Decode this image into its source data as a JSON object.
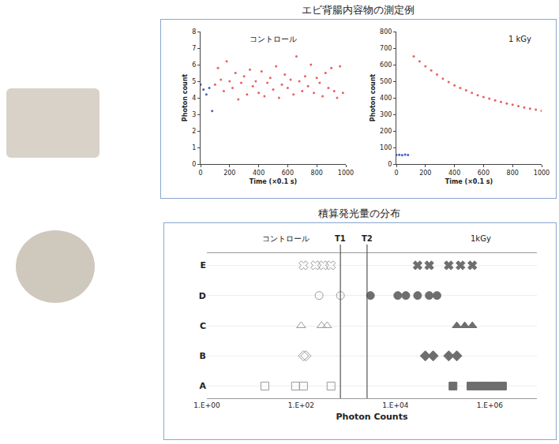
{
  "panel_title": "エビ背腸内容物の測定例",
  "chart_data": [
    {
      "type": "scatter",
      "title": "コントロール",
      "x_label": "Time (×0.1 s)",
      "y_label": "Photon count",
      "xlim": [
        0,
        1000
      ],
      "xticks": [
        0,
        200,
        400,
        600,
        800,
        1000
      ],
      "ylim": [
        0,
        8
      ],
      "yticks": [
        0,
        1,
        2,
        3,
        4,
        5,
        6,
        7,
        8
      ],
      "grid": false,
      "series": [
        {
          "color": "#4a5fc1",
          "marker": "circle",
          "x": [
            0,
            20,
            40,
            60,
            80
          ],
          "values": [
            4.8,
            4.5,
            4.2,
            4.6,
            3.2
          ]
        },
        {
          "color": "#e8615f",
          "marker": "circle",
          "x": [
            100,
            120,
            140,
            160,
            180,
            200,
            220,
            240,
            260,
            280,
            300,
            320,
            340,
            360,
            380,
            400,
            420,
            440,
            460,
            480,
            500,
            520,
            540,
            560,
            580,
            600,
            620,
            640,
            660,
            680,
            700,
            720,
            740,
            760,
            780,
            800,
            820,
            840,
            860,
            880,
            900,
            920,
            940,
            960,
            980
          ],
          "values": [
            4.8,
            5.8,
            5.1,
            4.4,
            6.2,
            5.0,
            4.6,
            5.5,
            3.9,
            4.9,
            5.3,
            4.2,
            5.7,
            4.7,
            5.0,
            4.3,
            5.6,
            4.1,
            4.9,
            5.2,
            4.5,
            5.9,
            4.0,
            4.8,
            5.4,
            4.6,
            5.1,
            4.2,
            6.5,
            5.0,
            4.4,
            5.3,
            4.7,
            6.0,
            4.3,
            5.2,
            4.9,
            4.1,
            5.5,
            4.6,
            5.8,
            4.4,
            4.0,
            5.9,
            4.3
          ]
        }
      ]
    },
    {
      "type": "scatter",
      "title": "1 kGy",
      "x_label": "Time (×0.1 s)",
      "y_label": "Photon count",
      "xlim": [
        0,
        1000
      ],
      "xticks": [
        0,
        200,
        400,
        600,
        800,
        1000
      ],
      "ylim": [
        0,
        800
      ],
      "yticks": [
        0,
        100,
        200,
        300,
        400,
        500,
        600,
        700,
        800
      ],
      "grid": false,
      "series": [
        {
          "color": "#4a5fc1",
          "marker": "circle",
          "x": [
            0,
            20,
            40,
            60,
            80
          ],
          "values": [
            55,
            56,
            54,
            57,
            55
          ]
        },
        {
          "color": "#e8615f",
          "marker": "circle",
          "x": [
            120,
            160,
            200,
            240,
            280,
            320,
            360,
            400,
            440,
            480,
            520,
            560,
            600,
            640,
            680,
            720,
            760,
            800,
            840,
            880,
            920,
            960,
            1000
          ],
          "values": [
            650,
            620,
            590,
            565,
            540,
            515,
            495,
            475,
            460,
            445,
            430,
            415,
            405,
            395,
            385,
            375,
            365,
            358,
            350,
            342,
            335,
            328,
            322
          ]
        }
      ]
    },
    {
      "type": "dot",
      "title": "積算発光量の分布",
      "x_label": "Photon Counts",
      "log": "x",
      "grid": false,
      "xlim": [
        1,
        10000000
      ],
      "xticks": [
        {
          "value": 1,
          "label": "1.E+00"
        },
        {
          "value": 100,
          "label": "1.E+02"
        },
        {
          "value": 10000,
          "label": "1.E+04"
        },
        {
          "value": 1000000,
          "label": "1.E+06"
        }
      ],
      "categories": [
        "A",
        "B",
        "C",
        "D",
        "E"
      ],
      "groups": [
        {
          "name": "コントロール",
          "color": "#9a9a9a",
          "marker": "open"
        },
        {
          "name": "1kGy",
          "color": "#6e6e6e",
          "marker": "filled"
        }
      ],
      "rows": [
        {
          "category": "A",
          "marker": "square",
          "values": [
            [
              17,
              76,
              112,
              430
            ],
            [
              166000,
              400000,
              590000,
              850000,
              1260000,
              1860000
            ]
          ]
        },
        {
          "category": "B",
          "marker": "diamond",
          "values": [
            [
              112,
              126
            ],
            [
              43000,
              63000,
              135000,
              200000
            ]
          ]
        },
        {
          "category": "C",
          "marker": "triangle-up",
          "values": [
            [
              100,
              270,
              355
            ],
            [
              200000,
              295000,
              427000
            ]
          ]
        },
        {
          "category": "D",
          "marker": "circle",
          "values": [
            [
              240,
              680
            ],
            [
              2950,
              11200,
              16600,
              29500,
              52000,
              76000
            ]
          ]
        },
        {
          "category": "E",
          "marker": "x",
          "values": [
            [
              112,
              200,
              295,
              430
            ],
            [
              29500,
              52000,
              135000,
              240000,
              427000
            ]
          ]
        }
      ],
      "annotations": [
        {
          "label": "T1",
          "value": 680
        },
        {
          "label": "T2",
          "value": 2500
        }
      ]
    }
  ]
}
